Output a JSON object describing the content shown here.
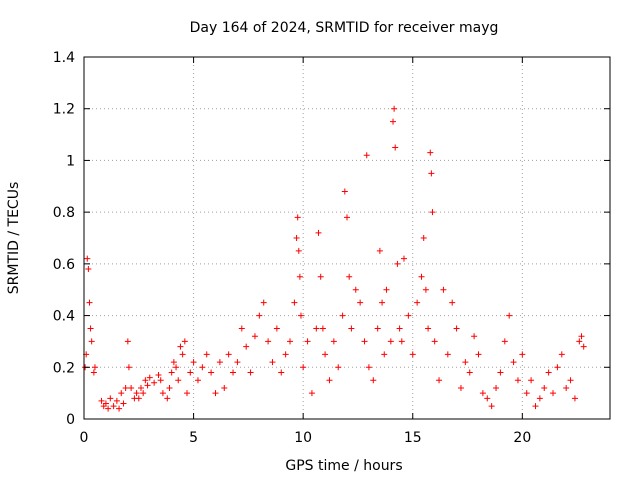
{
  "chart_data": {
    "type": "scatter",
    "title": "Day 164 of 2024, SRMTID for receiver mayg",
    "xlabel": "GPS time / hours",
    "ylabel": "SRMTID / TECUs",
    "xlim": [
      0,
      24
    ],
    "ylim": [
      0,
      1.4
    ],
    "xticks": [
      0,
      5,
      10,
      15,
      20
    ],
    "xtick_labels": [
      "0",
      "5",
      "10",
      "15",
      "20"
    ],
    "yticks": [
      0,
      0.2,
      0.4,
      0.6,
      0.8,
      1.0,
      1.2,
      1.4
    ],
    "ytick_labels": [
      "0",
      "0.2",
      "0.4",
      "0.6",
      "0.8",
      "1",
      "1.2",
      "1.4"
    ],
    "grid": true,
    "marker": "plus",
    "color": "#ff0000",
    "series": [
      {
        "name": "SRMTID",
        "points": [
          [
            0.05,
            0.2
          ],
          [
            0.1,
            0.25
          ],
          [
            0.15,
            0.62
          ],
          [
            0.2,
            0.58
          ],
          [
            0.25,
            0.45
          ],
          [
            0.3,
            0.35
          ],
          [
            0.35,
            0.3
          ],
          [
            0.45,
            0.18
          ],
          [
            0.5,
            0.2
          ],
          [
            0.8,
            0.07
          ],
          [
            0.9,
            0.05
          ],
          [
            1.0,
            0.06
          ],
          [
            1.1,
            0.04
          ],
          [
            1.2,
            0.08
          ],
          [
            1.35,
            0.05
          ],
          [
            1.5,
            0.07
          ],
          [
            1.6,
            0.04
          ],
          [
            1.7,
            0.1
          ],
          [
            1.8,
            0.06
          ],
          [
            1.9,
            0.12
          ],
          [
            2.0,
            0.3
          ],
          [
            2.05,
            0.2
          ],
          [
            2.15,
            0.12
          ],
          [
            2.3,
            0.08
          ],
          [
            2.4,
            0.1
          ],
          [
            2.5,
            0.08
          ],
          [
            2.6,
            0.12
          ],
          [
            2.7,
            0.1
          ],
          [
            2.8,
            0.15
          ],
          [
            2.9,
            0.13
          ],
          [
            3.0,
            0.16
          ],
          [
            3.2,
            0.14
          ],
          [
            3.4,
            0.17
          ],
          [
            3.5,
            0.15
          ],
          [
            3.6,
            0.1
          ],
          [
            3.8,
            0.08
          ],
          [
            3.9,
            0.12
          ],
          [
            4.0,
            0.18
          ],
          [
            4.1,
            0.22
          ],
          [
            4.2,
            0.2
          ],
          [
            4.3,
            0.15
          ],
          [
            4.4,
            0.28
          ],
          [
            4.5,
            0.25
          ],
          [
            4.6,
            0.3
          ],
          [
            4.7,
            0.1
          ],
          [
            4.85,
            0.18
          ],
          [
            5.0,
            0.22
          ],
          [
            5.2,
            0.15
          ],
          [
            5.4,
            0.2
          ],
          [
            5.6,
            0.25
          ],
          [
            5.8,
            0.18
          ],
          [
            6.0,
            0.1
          ],
          [
            6.2,
            0.22
          ],
          [
            6.4,
            0.12
          ],
          [
            6.6,
            0.25
          ],
          [
            6.8,
            0.18
          ],
          [
            7.0,
            0.22
          ],
          [
            7.2,
            0.35
          ],
          [
            7.4,
            0.28
          ],
          [
            7.6,
            0.18
          ],
          [
            7.8,
            0.32
          ],
          [
            8.0,
            0.4
          ],
          [
            8.2,
            0.45
          ],
          [
            8.4,
            0.3
          ],
          [
            8.6,
            0.22
          ],
          [
            8.8,
            0.35
          ],
          [
            9.0,
            0.18
          ],
          [
            9.2,
            0.25
          ],
          [
            9.4,
            0.3
          ],
          [
            9.6,
            0.45
          ],
          [
            9.7,
            0.7
          ],
          [
            9.75,
            0.78
          ],
          [
            9.8,
            0.65
          ],
          [
            9.85,
            0.55
          ],
          [
            9.9,
            0.4
          ],
          [
            10.0,
            0.2
          ],
          [
            10.2,
            0.3
          ],
          [
            10.4,
            0.1
          ],
          [
            10.6,
            0.35
          ],
          [
            10.7,
            0.72
          ],
          [
            10.8,
            0.55
          ],
          [
            10.9,
            0.35
          ],
          [
            11.0,
            0.25
          ],
          [
            11.2,
            0.15
          ],
          [
            11.4,
            0.3
          ],
          [
            11.6,
            0.2
          ],
          [
            11.8,
            0.4
          ],
          [
            11.9,
            0.88
          ],
          [
            12.0,
            0.78
          ],
          [
            12.1,
            0.55
          ],
          [
            12.2,
            0.35
          ],
          [
            12.4,
            0.5
          ],
          [
            12.6,
            0.45
          ],
          [
            12.8,
            0.3
          ],
          [
            12.9,
            1.02
          ],
          [
            13.0,
            0.2
          ],
          [
            13.2,
            0.15
          ],
          [
            13.4,
            0.35
          ],
          [
            13.5,
            0.65
          ],
          [
            13.6,
            0.45
          ],
          [
            13.7,
            0.25
          ],
          [
            13.8,
            0.5
          ],
          [
            14.0,
            0.3
          ],
          [
            14.1,
            1.15
          ],
          [
            14.15,
            1.2
          ],
          [
            14.2,
            1.05
          ],
          [
            14.3,
            0.6
          ],
          [
            14.4,
            0.35
          ],
          [
            14.5,
            0.3
          ],
          [
            14.6,
            0.62
          ],
          [
            14.8,
            0.4
          ],
          [
            15.0,
            0.25
          ],
          [
            15.2,
            0.45
          ],
          [
            15.4,
            0.55
          ],
          [
            15.5,
            0.7
          ],
          [
            15.6,
            0.5
          ],
          [
            15.7,
            0.35
          ],
          [
            15.8,
            1.03
          ],
          [
            15.85,
            0.95
          ],
          [
            15.9,
            0.8
          ],
          [
            16.0,
            0.3
          ],
          [
            16.2,
            0.15
          ],
          [
            16.4,
            0.5
          ],
          [
            16.6,
            0.25
          ],
          [
            16.8,
            0.45
          ],
          [
            17.0,
            0.35
          ],
          [
            17.2,
            0.12
          ],
          [
            17.4,
            0.22
          ],
          [
            17.6,
            0.18
          ],
          [
            17.8,
            0.32
          ],
          [
            18.0,
            0.25
          ],
          [
            18.2,
            0.1
          ],
          [
            18.4,
            0.08
          ],
          [
            18.6,
            0.05
          ],
          [
            18.8,
            0.12
          ],
          [
            19.0,
            0.18
          ],
          [
            19.2,
            0.3
          ],
          [
            19.4,
            0.4
          ],
          [
            19.6,
            0.22
          ],
          [
            19.8,
            0.15
          ],
          [
            20.0,
            0.25
          ],
          [
            20.2,
            0.1
          ],
          [
            20.4,
            0.15
          ],
          [
            20.6,
            0.05
          ],
          [
            20.8,
            0.08
          ],
          [
            21.0,
            0.12
          ],
          [
            21.2,
            0.18
          ],
          [
            21.4,
            0.1
          ],
          [
            21.6,
            0.2
          ],
          [
            21.8,
            0.25
          ],
          [
            22.0,
            0.12
          ],
          [
            22.2,
            0.15
          ],
          [
            22.4,
            0.08
          ],
          [
            22.6,
            0.3
          ],
          [
            22.7,
            0.32
          ],
          [
            22.8,
            0.28
          ]
        ]
      }
    ]
  }
}
